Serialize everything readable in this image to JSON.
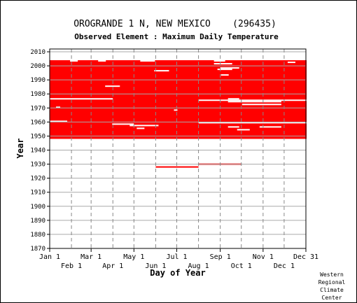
{
  "chart_data": {
    "type": "heatmap",
    "title": "OROGRANDE 1 N, NEW MEXICO    (296435)",
    "subtitle": "Observed Element : Maximum Daily Temperature",
    "xlabel": "Day of Year",
    "ylabel": "Year",
    "ylim": [
      1870,
      2012
    ],
    "x_ticks_upper": [
      "Jan 1",
      "Mar 1",
      "May 1",
      "Jul 1",
      "Sep 1",
      "Nov 1",
      "Dec 31"
    ],
    "x_ticks_lower": [
      "Feb 1",
      "Apr 1",
      "Jun 1",
      "Aug 1",
      "Oct 1",
      "Dec 1"
    ],
    "y_ticks": [
      1870,
      1880,
      1890,
      1900,
      1910,
      1920,
      1930,
      1940,
      1950,
      1960,
      1970,
      1980,
      1990,
      2000,
      2010
    ],
    "grid": true,
    "data_color": "#ff0000",
    "main_block": {
      "start_year": 1948,
      "end_year": 2004,
      "day_start": 1,
      "day_end": 366
    },
    "isolated_records": [
      {
        "year": 1928,
        "day_start": 152,
        "day_end": 212
      },
      {
        "year": 1930,
        "day_start": 213,
        "day_end": 273
      }
    ],
    "gaps": [
      {
        "year": 2003,
        "day_start": 30,
        "day_end": 40
      },
      {
        "year": 2003,
        "day_start": 70,
        "day_end": 80
      },
      {
        "year": 2003,
        "day_start": 130,
        "day_end": 150
      },
      {
        "year": 2003,
        "day_start": 235,
        "day_end": 250
      },
      {
        "year": 2002,
        "day_start": 340,
        "day_end": 350
      },
      {
        "year": 2001,
        "day_start": 235,
        "day_end": 260
      },
      {
        "year": 1998,
        "day_start": 244,
        "day_end": 270
      },
      {
        "year": 1997,
        "day_start": 240,
        "day_end": 260
      },
      {
        "year": 1996,
        "day_start": 150,
        "day_end": 170
      },
      {
        "year": 1993,
        "day_start": 245,
        "day_end": 255
      },
      {
        "year": 1985,
        "day_start": 80,
        "day_end": 100
      },
      {
        "year": 1976,
        "day_start": 1,
        "day_end": 90
      },
      {
        "year": 1976,
        "day_start": 255,
        "day_end": 270
      },
      {
        "year": 1975,
        "day_start": 213,
        "day_end": 366
      },
      {
        "year": 1974,
        "day_start": 255,
        "day_end": 330
      },
      {
        "year": 1972,
        "day_start": 275,
        "day_end": 330
      },
      {
        "year": 1970,
        "day_start": 10,
        "day_end": 15
      },
      {
        "year": 1968,
        "day_start": 178,
        "day_end": 182
      },
      {
        "year": 1960,
        "day_start": 1,
        "day_end": 25
      },
      {
        "year": 1959,
        "day_start": 213,
        "day_end": 366
      },
      {
        "year": 1958,
        "day_start": 90,
        "day_end": 120
      },
      {
        "year": 1957,
        "day_start": 115,
        "day_end": 155
      },
      {
        "year": 1956,
        "day_start": 255,
        "day_end": 270
      },
      {
        "year": 1956,
        "day_start": 300,
        "day_end": 330
      },
      {
        "year": 1955,
        "day_start": 125,
        "day_end": 135
      },
      {
        "year": 1954,
        "day_start": 268,
        "day_end": 285
      }
    ],
    "credit": [
      "Western",
      "Regional",
      "Climate",
      "Center"
    ]
  }
}
